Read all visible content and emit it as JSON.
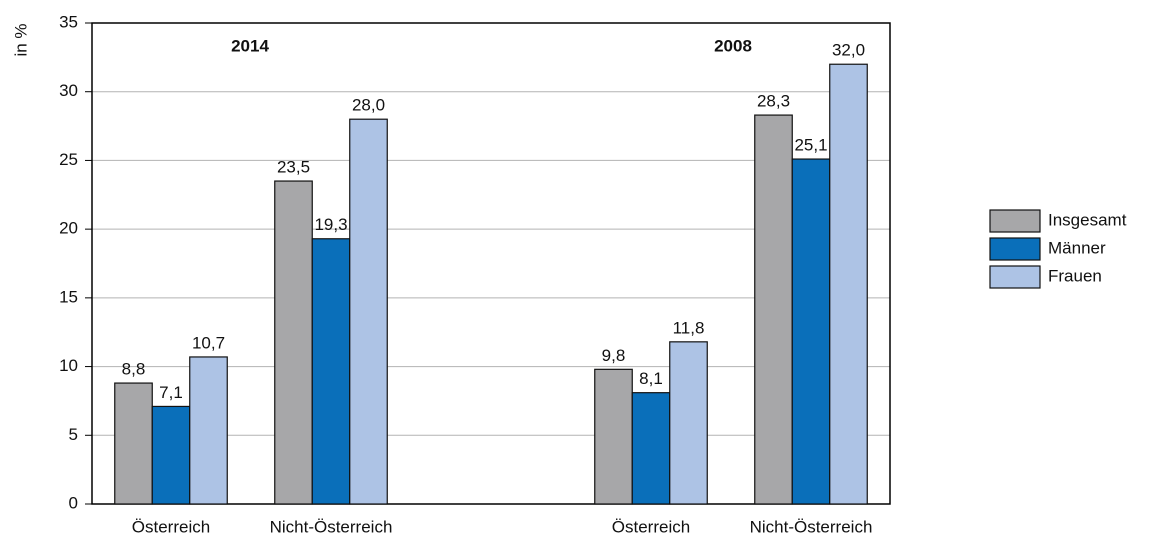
{
  "chart_data": {
    "type": "bar",
    "y_label": "in %",
    "annotations": [
      "2014",
      "2008"
    ],
    "categories": [
      "Österreich",
      "Nicht-Österreich",
      "Österreich",
      "Nicht-Österreich"
    ],
    "series": [
      {
        "name": "Insgesamt",
        "color": "#a7a7a9",
        "values": [
          8.8,
          23.5,
          9.8,
          28.3
        ],
        "value_labels": [
          "8,8",
          "23,5",
          "9,8",
          "28,3"
        ]
      },
      {
        "name": "Männer",
        "color": "#0a6fba",
        "values": [
          7.1,
          19.3,
          8.1,
          25.1
        ],
        "value_labels": [
          "7,1",
          "19,3",
          "8,1",
          "25,1"
        ]
      },
      {
        "name": "Frauen",
        "color": "#adc3e5",
        "values": [
          10.7,
          28.0,
          11.8,
          32.0
        ],
        "value_labels": [
          "10,7",
          "28,0",
          "11,8",
          "32,0"
        ]
      }
    ],
    "ylim": [
      0,
      35
    ],
    "yticks": [
      0,
      5,
      10,
      15,
      20,
      25,
      30,
      35
    ],
    "grid": true,
    "legend": "right"
  }
}
